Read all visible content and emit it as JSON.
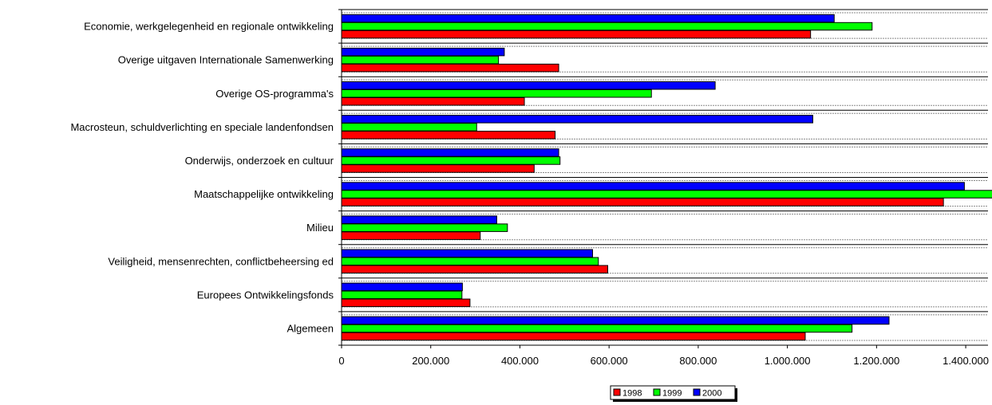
{
  "chart_data": {
    "type": "bar",
    "orientation": "horizontal",
    "categories": [
      "Economie, werkgelegenheid en regionale ontwikkeling",
      "Overige uitgaven Internationale Samenwerking",
      "Overige OS-programma's",
      "Macrosteun, schuldverlichting en speciale landenfondsen",
      "Onderwijs, onderzoek en cultuur",
      "Maatschappelijke ontwikkeling",
      "Milieu",
      "Veiligheid, mensenrechten, conflictbeheersing ed",
      "Europees Ontwikkelingsfonds",
      "Algemeen"
    ],
    "series": [
      {
        "name": "1998",
        "color": "#ff0000",
        "values": [
          1052000,
          487000,
          410000,
          479000,
          432000,
          1350000,
          311000,
          597000,
          288000,
          1040000
        ]
      },
      {
        "name": "1999",
        "color": "#00ff00",
        "values": [
          1190000,
          352000,
          695000,
          303000,
          490000,
          1465000,
          372000,
          576000,
          270000,
          1145000
        ]
      },
      {
        "name": "2000",
        "color": "#0000ff",
        "values": [
          1105000,
          365000,
          838000,
          1057000,
          487000,
          1397000,
          348000,
          563000,
          271000,
          1228000
        ]
      }
    ],
    "xlim": [
      0,
      1450000
    ],
    "xticks": [
      "0",
      "200.000",
      "400.000",
      "600.000",
      "800.000",
      "1.000.000",
      "1.200.000",
      "1.400.000"
    ],
    "xtick_values": [
      0,
      200000,
      400000,
      600000,
      800000,
      1000000,
      1200000,
      1400000
    ],
    "grid": true,
    "legend_position": "bottom",
    "title": "",
    "xlabel": "",
    "ylabel": ""
  }
}
